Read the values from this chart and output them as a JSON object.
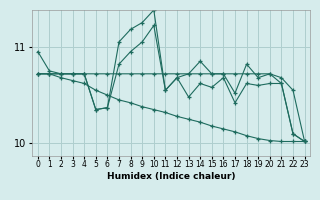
{
  "xlabel": "Humidex (Indice chaleur)",
  "bg_color": "#d6ecec",
  "grid_color": "#aecece",
  "line_color": "#1e6b5e",
  "marker": "+",
  "xlim": [
    -0.5,
    23.5
  ],
  "ylim": [
    9.87,
    11.38
  ],
  "yticks": [
    10,
    11
  ],
  "xticks": [
    0,
    1,
    2,
    3,
    4,
    5,
    6,
    7,
    8,
    9,
    10,
    11,
    12,
    13,
    14,
    15,
    16,
    17,
    18,
    19,
    20,
    21,
    22,
    23
  ],
  "series": [
    [
      10.95,
      10.75,
      10.72,
      10.72,
      10.72,
      10.35,
      10.37,
      10.82,
      10.95,
      11.05,
      11.22,
      10.55,
      10.68,
      10.48,
      10.62,
      10.58,
      10.68,
      10.42,
      10.62,
      10.6,
      10.62,
      10.62,
      10.1,
      10.02
    ],
    [
      10.72,
      10.72,
      10.72,
      10.72,
      10.72,
      10.72,
      10.72,
      10.72,
      10.72,
      10.72,
      10.72,
      10.72,
      10.72,
      10.72,
      10.72,
      10.72,
      10.72,
      10.72,
      10.72,
      10.72,
      10.72,
      10.68,
      10.55,
      10.02
    ],
    [
      10.72,
      10.72,
      10.72,
      10.72,
      10.72,
      10.35,
      10.37,
      11.05,
      11.18,
      11.25,
      11.38,
      10.55,
      10.68,
      10.72,
      10.85,
      10.72,
      10.72,
      10.52,
      10.82,
      10.68,
      10.72,
      10.62,
      10.1,
      10.02
    ],
    [
      10.72,
      10.72,
      10.68,
      10.65,
      10.62,
      10.55,
      10.5,
      10.45,
      10.42,
      10.38,
      10.35,
      10.32,
      10.28,
      10.25,
      10.22,
      10.18,
      10.15,
      10.12,
      10.08,
      10.05,
      10.03,
      10.02,
      10.02,
      10.02
    ]
  ]
}
